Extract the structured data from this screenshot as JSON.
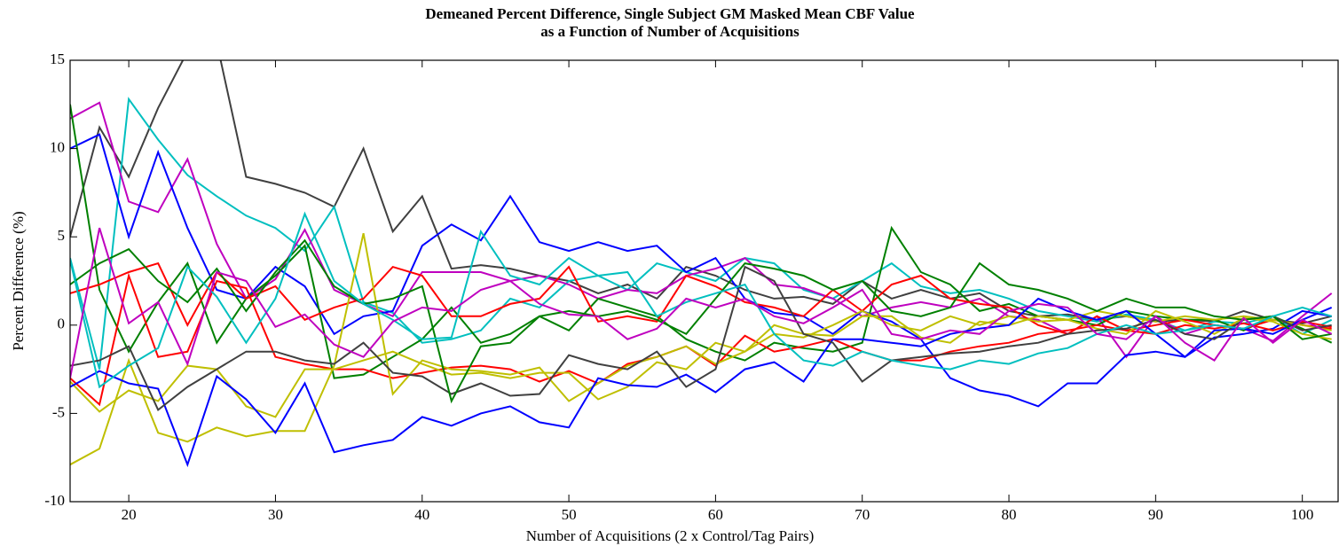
{
  "chart_data": {
    "type": "line",
    "title": [
      "Demeaned Percent Difference, Single Subject GM Masked Mean CBF Value",
      "as a Function of Number of Acquisitions"
    ],
    "x_label": "Number of Acquisitions (2 x Control/Tag Pairs)",
    "y_label": "Percent Difference (%)",
    "xlim": [
      16,
      102.5
    ],
    "ylim": [
      -10,
      15
    ],
    "xticks": [
      20,
      30,
      40,
      50,
      60,
      70,
      80,
      90,
      100
    ],
    "yticks": [
      -10,
      -5,
      0,
      5,
      10,
      15
    ],
    "grid": false,
    "x": [
      16,
      18,
      20,
      22,
      24,
      26,
      28,
      30,
      32,
      34,
      36,
      38,
      40,
      42,
      44,
      46,
      48,
      50,
      52,
      54,
      56,
      58,
      60,
      62,
      64,
      66,
      68,
      70,
      72,
      74,
      76,
      78,
      80,
      82,
      84,
      86,
      88,
      90,
      92,
      94,
      96,
      98,
      100,
      102
    ],
    "series": [
      {
        "color": "#404040",
        "values": [
          5,
          11.2,
          8.4,
          12.3,
          15.5,
          16,
          8.4,
          8,
          7.5,
          6.7,
          10,
          5.3,
          7.3,
          3.2,
          3.4,
          3.2,
          2.8,
          2.5,
          1.8,
          2.3,
          1.5,
          3.3,
          2.8,
          2,
          1.5,
          1.6,
          1.2,
          2.5,
          1.5,
          2,
          1.5,
          1.8,
          0.8,
          0.5,
          0.6,
          0.3,
          0.5,
          0.2,
          0.3,
          0.2,
          0.8,
          0.3,
          0.1,
          0.5
        ]
      },
      {
        "color": "#00bfbf",
        "values": [
          3.8,
          -2.5,
          12.8,
          10.5,
          8.5,
          7.3,
          6.2,
          5.5,
          4.2,
          6.7,
          1.3,
          0.7,
          -1,
          -0.8,
          -0.3,
          1.5,
          1,
          2.5,
          2.8,
          2,
          3.5,
          3,
          2.5,
          3.8,
          3.5,
          2,
          1.5,
          2.5,
          3.5,
          2.2,
          1.8,
          2,
          1.5,
          0.8,
          0.5,
          0.2,
          0.6,
          0.3,
          -0.3,
          0.2,
          0.1,
          0.5,
          -0.5,
          0.3
        ]
      },
      {
        "color": "#bf00bf",
        "values": [
          11.7,
          12.6,
          7,
          6.4,
          9.4,
          4.6,
          1.5,
          2.6,
          5.4,
          2,
          1.2,
          0.5,
          3,
          3,
          3,
          2.5,
          2.8,
          2.3,
          1.5,
          2,
          1.8,
          2.8,
          3.2,
          3.8,
          2.3,
          2.1,
          1.5,
          0.5,
          1,
          1.3,
          1,
          1.5,
          0.5,
          0.3,
          -0.5,
          0.5,
          -1.8,
          0.5,
          -0.5,
          0,
          -0.2,
          -0.9,
          0.5,
          1.8
        ]
      },
      {
        "color": "#0000ff",
        "values": [
          10,
          10.8,
          5,
          9.8,
          5.5,
          2,
          1.5,
          3.3,
          2.2,
          -0.5,
          0.5,
          0.8,
          4.5,
          5.7,
          4.8,
          7.3,
          4.7,
          4.2,
          4.7,
          4.2,
          4.5,
          3,
          3.8,
          1.5,
          0.7,
          0.5,
          -0.5,
          0.8,
          0.2,
          -0.8,
          -3,
          -3.7,
          -4,
          -4.6,
          -3.3,
          -3.3,
          -1.7,
          -1.5,
          -1.8,
          -0.7,
          -0.5,
          -0.2,
          0.8,
          0.5
        ]
      },
      {
        "color": "#008000",
        "values": [
          12.5,
          2,
          -1.5,
          1.3,
          3.5,
          -1,
          1.5,
          2.8,
          4.5,
          -3,
          -2.8,
          -1.8,
          -0.8,
          1,
          -1,
          -0.5,
          0.5,
          -0.3,
          1.5,
          1,
          0.5,
          -0.8,
          -1.5,
          -2,
          -1,
          -1.3,
          -1.5,
          -1,
          5.5,
          3,
          2.3,
          0.8,
          1.2,
          0.5,
          0.3,
          0,
          0.8,
          0.5,
          0.3,
          0.3,
          -0.3,
          0.5,
          -0.2,
          -1
        ]
      },
      {
        "color": "#ff0000",
        "values": [
          1.8,
          2.3,
          3,
          3.5,
          0,
          3,
          1.5,
          2.2,
          0.3,
          1,
          1.5,
          3.3,
          2.8,
          0.5,
          0.5,
          1.2,
          1.5,
          3.3,
          0.2,
          0.5,
          0.2,
          2.8,
          2.2,
          1.3,
          1,
          0.5,
          2,
          0.8,
          2.3,
          2.8,
          1.5,
          1.2,
          1,
          0,
          -0.5,
          0.5,
          -0.3,
          0,
          0.3,
          0,
          -0.2,
          0.3,
          0,
          -0.2
        ]
      },
      {
        "color": "#ff0000",
        "values": [
          -3,
          -4.5,
          2.8,
          -1.8,
          -1.5,
          2.5,
          2.1,
          -1.8,
          -2.2,
          -2.5,
          -2.5,
          -3,
          -2.7,
          -2.4,
          -2.3,
          -2.5,
          -3.2,
          -2.6,
          -3.3,
          -2.2,
          -1.8,
          -1.2,
          -2.3,
          -0.6,
          -1.5,
          -1.2,
          -0.8,
          -1.5,
          -2,
          -2,
          -1.5,
          -1.2,
          -1,
          -0.5,
          -0.3,
          0,
          -0.3,
          -0.5,
          0,
          -0.2,
          0.1,
          -0.3,
          0.2,
          -0.1
        ]
      },
      {
        "color": "#bfbf00",
        "values": [
          -7.9,
          -7,
          -2,
          -6.1,
          -6.6,
          -5.8,
          -6.3,
          -6,
          -6,
          -2.3,
          5.2,
          -3.9,
          -2,
          -2.5,
          -2.6,
          -2.8,
          -2.4,
          -4.3,
          -3.3,
          -2.3,
          -1.8,
          -1.2,
          -2.2,
          -1.5,
          0,
          -0.5,
          -0.6,
          0.5,
          0.5,
          -0.7,
          -1,
          0.2,
          0,
          0.5,
          0.3,
          -0.2,
          -0.5,
          0.8,
          0.2,
          -0.5,
          0.4,
          0.2,
          -0.5,
          -0.8
        ]
      },
      {
        "color": "#bfbf00",
        "values": [
          -3.2,
          -4.9,
          -3.7,
          -4.3,
          -2.3,
          -2.5,
          -4.6,
          -5.2,
          -2.5,
          -2.5,
          -2,
          -1.5,
          -2.2,
          -2.8,
          -2.7,
          -3,
          -2.7,
          -2.7,
          -4.2,
          -3.5,
          -2.1,
          -2.5,
          -1,
          -1.5,
          -0.5,
          -0.7,
          0,
          0.8,
          0,
          -0.3,
          0.5,
          0,
          0.5,
          0.2,
          0.3,
          0.8,
          0.5,
          0.2,
          0.5,
          0.3,
          0.5,
          0.3,
          0,
          -0.3
        ]
      },
      {
        "color": "#0000ff",
        "values": [
          -3.5,
          -2.6,
          -3.3,
          -3.6,
          -7.9,
          -2.9,
          -4.2,
          -6.1,
          -3.3,
          -7.2,
          -6.8,
          -6.5,
          -5.2,
          -5.7,
          -5,
          -4.6,
          -5.5,
          -5.8,
          -3,
          -3.4,
          -3.5,
          -2.8,
          -3.8,
          -2.5,
          -2.1,
          -3.2,
          -0.8,
          -0.8,
          -1,
          -1.2,
          -0.5,
          -0.2,
          0,
          1.5,
          0.8,
          0.3,
          0.8,
          -0.5,
          -1.8,
          -0.3,
          -0.2,
          -0.5,
          0.3,
          1
        ]
      },
      {
        "color": "#404040",
        "values": [
          -2.3,
          -2,
          -1.2,
          -4.8,
          -3.5,
          -2.5,
          -1.5,
          -1.5,
          -2,
          -2.2,
          -1,
          -2.7,
          -2.9,
          -3.9,
          -3.3,
          -4,
          -3.9,
          -1.7,
          -2.2,
          -2.5,
          -1.5,
          -3.5,
          -2.5,
          3.3,
          2.5,
          -0.5,
          -1,
          -3.2,
          -2,
          -1.8,
          -1.6,
          -1.5,
          -1.2,
          -1,
          -0.5,
          -0.3,
          -0.2,
          0.3,
          -0.5,
          -0.8,
          0.3,
          0.5,
          -0.3,
          0
        ]
      },
      {
        "color": "#008000",
        "values": [
          2.3,
          3.5,
          4.3,
          2.5,
          1.3,
          3.2,
          0.8,
          3,
          4.8,
          2.2,
          1.2,
          1.5,
          2.2,
          -4.3,
          -1.2,
          -1,
          0.5,
          0.8,
          0.5,
          0.8,
          0.3,
          -0.5,
          1.5,
          3.5,
          3.2,
          2.8,
          2,
          2.5,
          0.8,
          0.5,
          1,
          3.5,
          2.3,
          2,
          1.5,
          0.8,
          1.5,
          1,
          1,
          0.5,
          0.3,
          0.5,
          -0.8,
          -0.5
        ]
      },
      {
        "color": "#00bfbf",
        "values": [
          3.7,
          -3.5,
          -2.3,
          -1.3,
          3.3,
          1.6,
          -1,
          1.5,
          6.3,
          2.5,
          1.2,
          0.3,
          -0.8,
          -0.7,
          5.3,
          2.8,
          2.3,
          3.8,
          2.8,
          3,
          0.5,
          1.3,
          1.8,
          2.3,
          -0.5,
          -2,
          -2.3,
          -1.5,
          -2,
          -2.3,
          -2.5,
          -2,
          -2.2,
          -1.6,
          -1.3,
          -0.5,
          0,
          -0.5,
          -0.3,
          0,
          -0.2,
          0.5,
          1,
          0.5
        ]
      },
      {
        "color": "#bf00bf",
        "values": [
          -3,
          5.5,
          0.1,
          1.3,
          -2.2,
          3,
          2.5,
          -0.1,
          0.6,
          -1.1,
          -1.8,
          0.2,
          1,
          0.8,
          2,
          2.5,
          1.2,
          0.6,
          0.5,
          -0.8,
          -0.2,
          1.5,
          1,
          1.5,
          0.5,
          0.1,
          1,
          2,
          -0.5,
          -0.8,
          -0.3,
          -0.5,
          0.8,
          1.2,
          1,
          -0.5,
          -0.8,
          0.5,
          -1,
          -2,
          0.4,
          -1,
          0.3,
          -0.5
        ]
      }
    ]
  }
}
